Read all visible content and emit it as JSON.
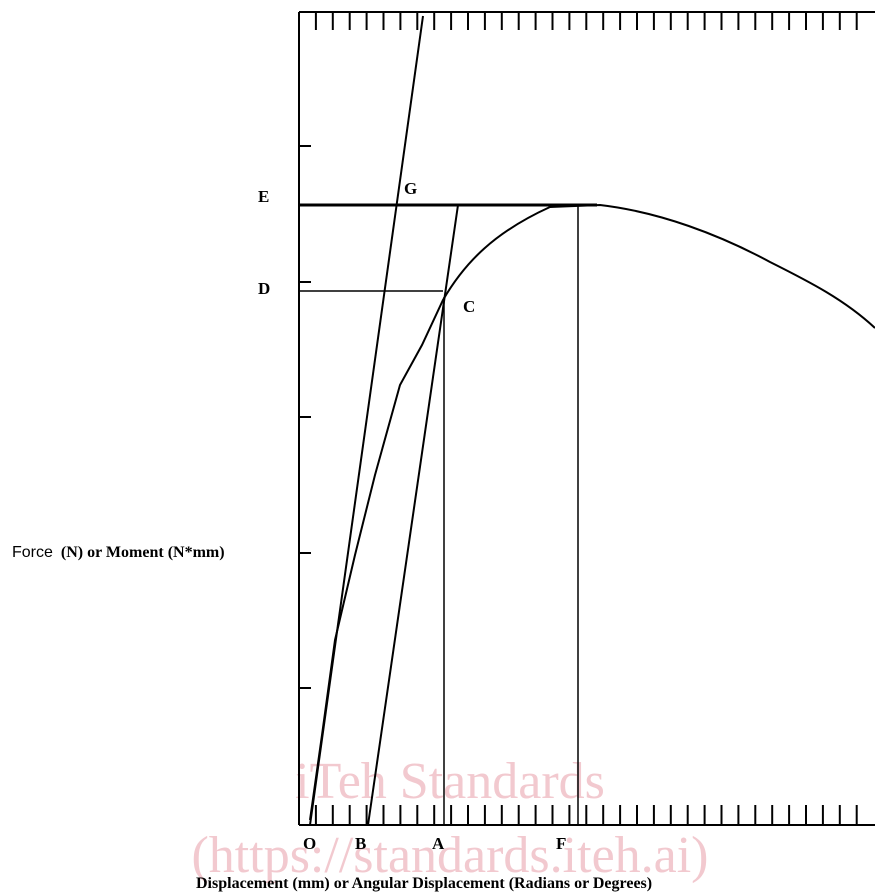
{
  "diagram": {
    "point_labels": {
      "E": "E",
      "G": "G",
      "D": "D",
      "C": "C",
      "O": "O",
      "B": "B",
      "A": "A",
      "F": "F"
    },
    "y_axis_label_prefix": "Force",
    "y_axis_label_rest": "(N) or Moment (N*mm)",
    "x_axis_label": "Displacement (mm) or Angular Displacement (Radians or Degrees)"
  },
  "watermark": {
    "line1": "iTeh Standards",
    "line2": "(https://standards.iteh.ai)"
  }
}
